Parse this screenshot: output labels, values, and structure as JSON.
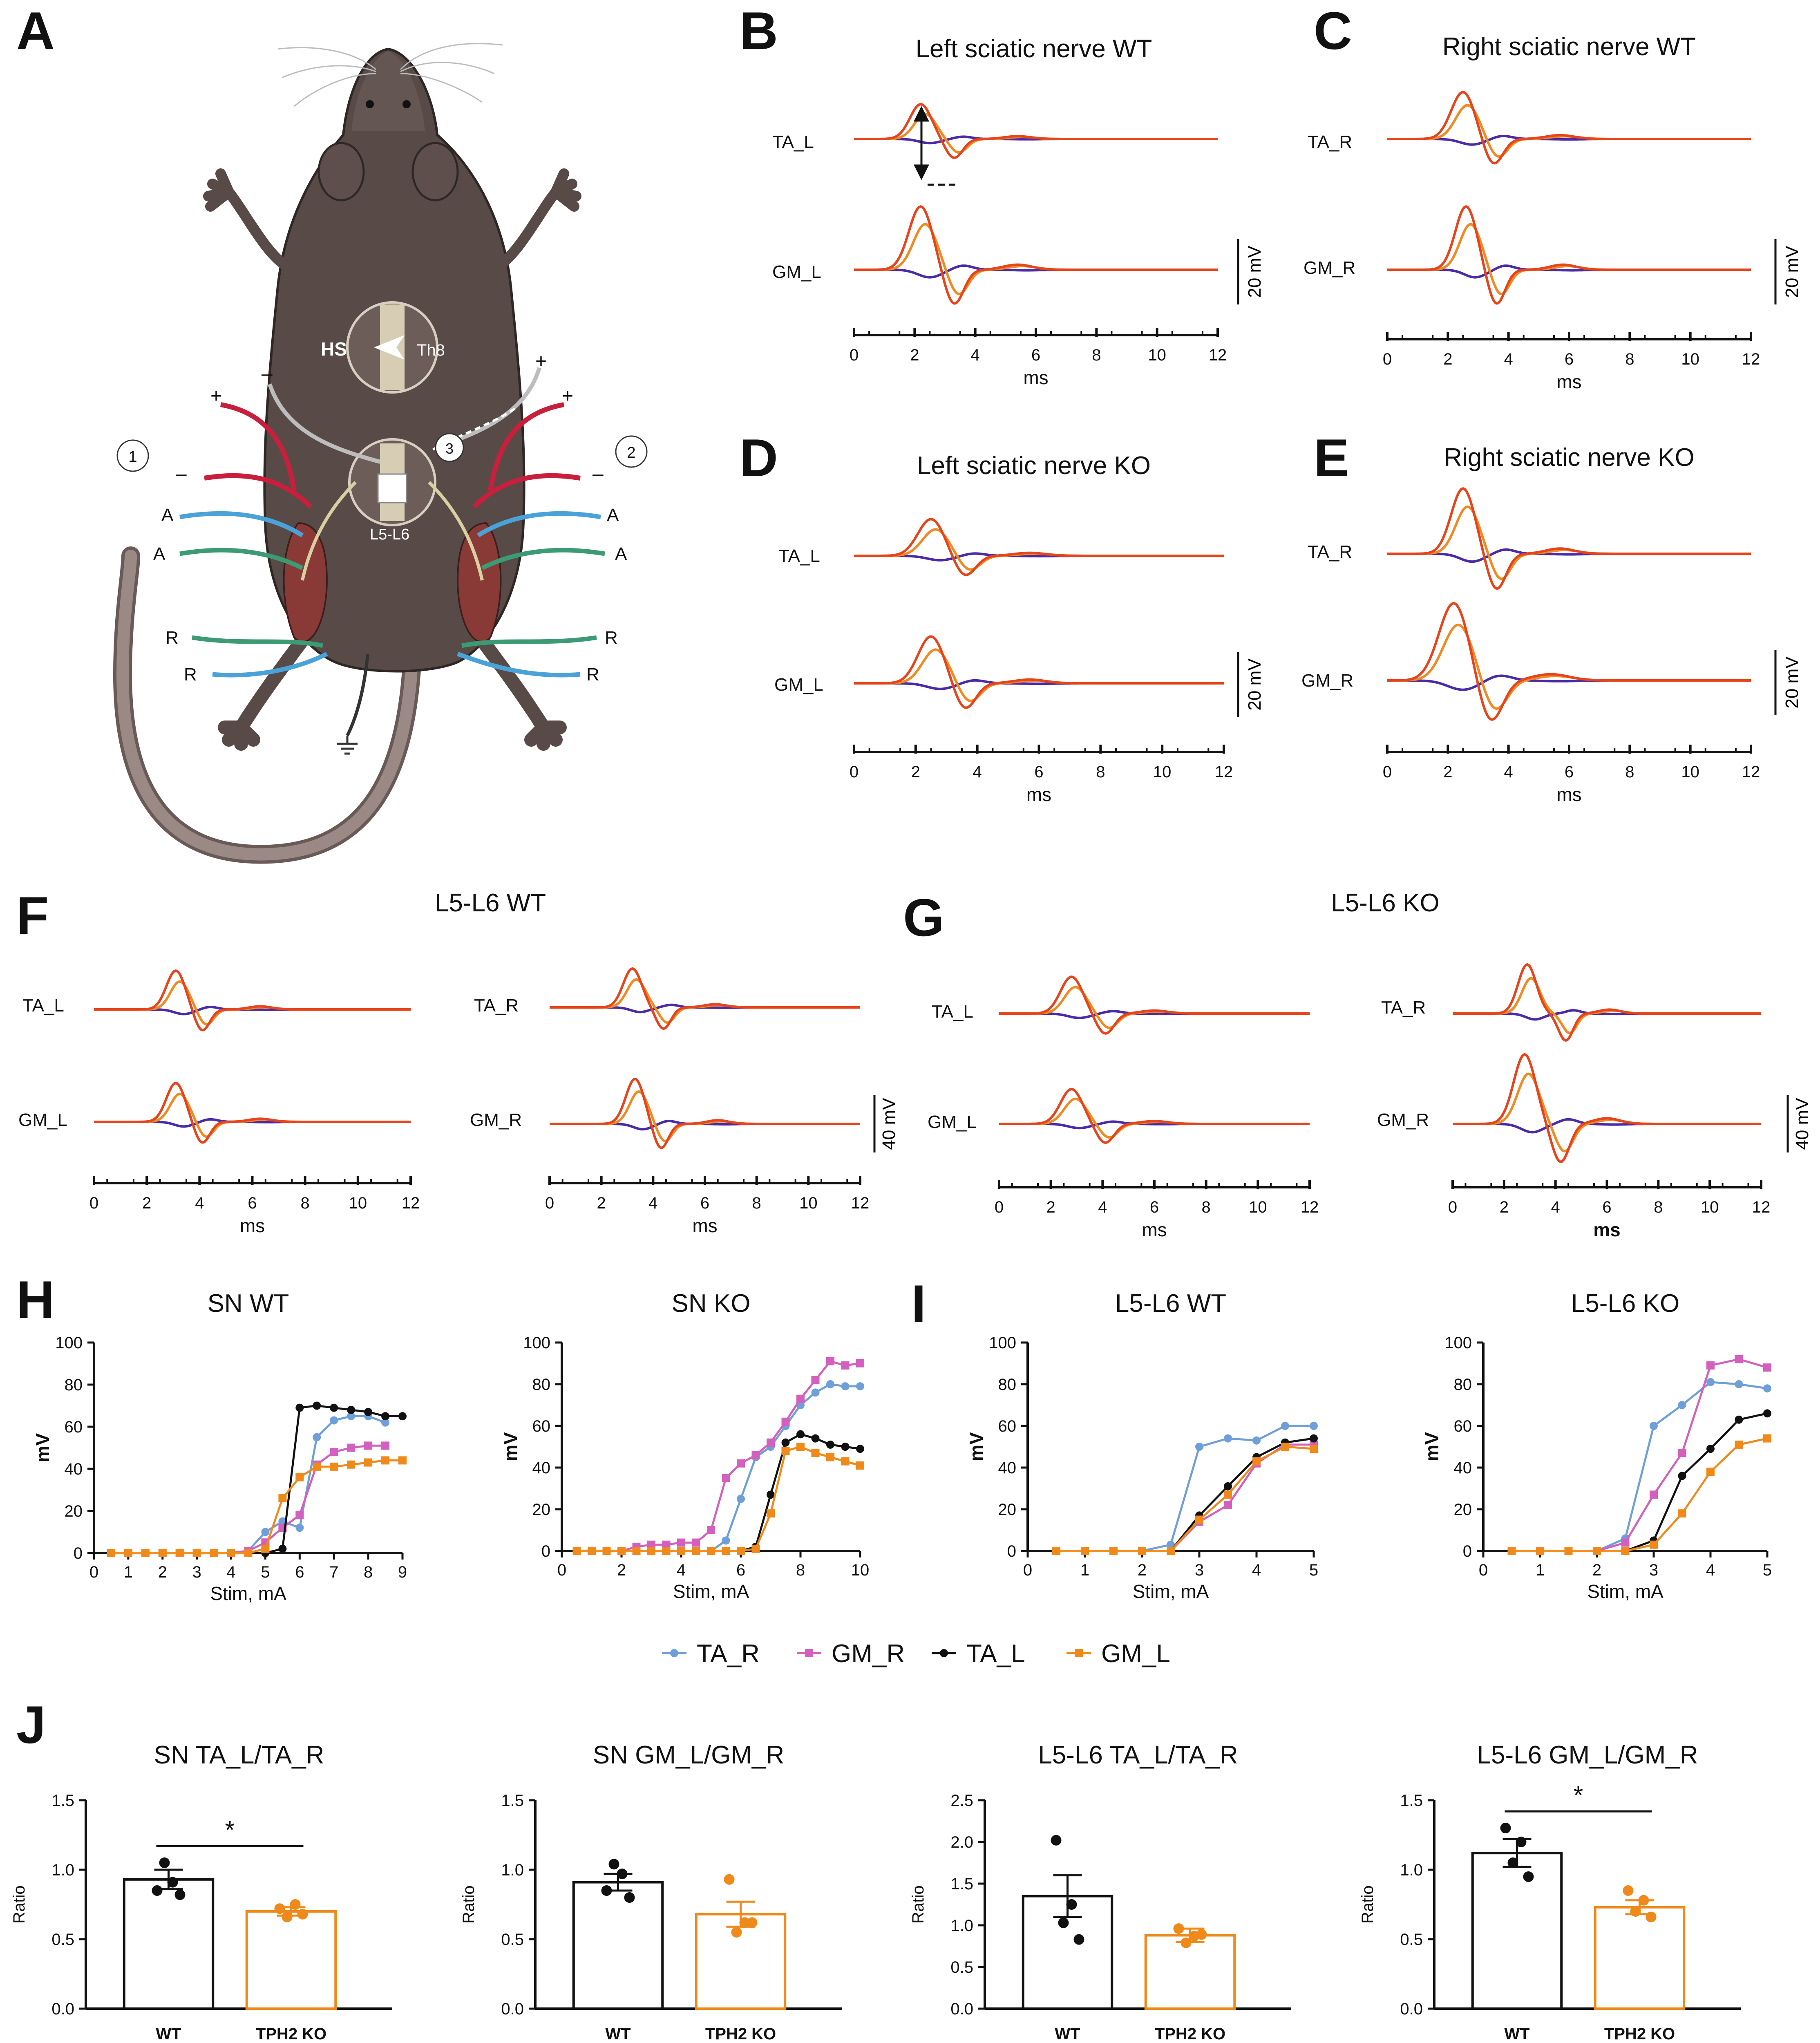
{
  "panels": {
    "A": {
      "letter": "A",
      "labels": {
        "hs": "HS",
        "th8": "Th8",
        "l5l6": "L5-L6",
        "c1": "1",
        "c2": "2",
        "c3": "3",
        "plus": "+",
        "minus": "–",
        "a": "A",
        "r": "R"
      }
    },
    "B": {
      "letter": "B",
      "title": "Left sciatic nerve WT",
      "top": "TA_L",
      "bottom": "GM_L",
      "scale": "20 mV",
      "xlabel": "ms"
    },
    "C": {
      "letter": "C",
      "title": "Right sciatic nerve WT",
      "top": "TA_R",
      "bottom": "GM_R",
      "scale": "20 mV",
      "xlabel": "ms"
    },
    "D": {
      "letter": "D",
      "title": "Left sciatic nerve KO",
      "top": "TA_L",
      "bottom": "GM_L",
      "scale": "20 mV",
      "xlabel": "ms"
    },
    "E": {
      "letter": "E",
      "title": "Right sciatic nerve KO",
      "top": "TA_R",
      "bottom": "GM_R",
      "scale": "20 mV",
      "xlabel": "ms"
    },
    "F": {
      "letter": "F",
      "title": "L5-L6 WT",
      "left_top": "TA_L",
      "left_bottom": "GM_L",
      "right_top": "TA_R",
      "right_bottom": "GM_R",
      "scale": "40 mV",
      "xlabel": "ms"
    },
    "G": {
      "letter": "G",
      "title": "L5-L6 KO",
      "left_top": "TA_L",
      "left_bottom": "GM_L",
      "right_top": "TA_R",
      "right_bottom": "GM_R",
      "scale": "40 mV",
      "xlabel": "ms"
    },
    "H": {
      "letter": "H"
    },
    "I": {
      "letter": "I"
    },
    "J": {
      "letter": "J"
    }
  },
  "trace_axis_ticks": [
    "0",
    "2",
    "4",
    "6",
    "8",
    "10",
    "12"
  ],
  "legend": [
    {
      "name": "TA_R",
      "color": "#6f9fd8",
      "marker": "circle"
    },
    {
      "name": "GM_R",
      "color": "#d35fbf",
      "marker": "square"
    },
    {
      "name": "TA_L",
      "color": "#111111",
      "marker": "circle"
    },
    {
      "name": "GM_L",
      "color": "#ef8a1a",
      "marker": "square"
    }
  ],
  "colors": {
    "trace_low": "#4b2aa8",
    "trace_mid": "#f08a22",
    "trace_high": "#e8441b",
    "ko_bar": "#ef8a1a",
    "wt_bar": "#111111"
  },
  "chart_data": [
    {
      "type": "line",
      "id": "H1",
      "title": "SN WT",
      "xlabel": "Stim, mA",
      "ylabel": "mV",
      "xlim": [
        0,
        9
      ],
      "ylim": [
        0,
        100
      ],
      "xticks": [
        "0",
        "1",
        "2",
        "3",
        "4",
        "5",
        "6",
        "7",
        "8",
        "9"
      ],
      "yticks": [
        "0",
        "20",
        "40",
        "60",
        "80",
        "100"
      ],
      "x": [
        0.5,
        1,
        1.5,
        2,
        2.5,
        3,
        3.5,
        4,
        4.5,
        5,
        5.5,
        6,
        6.5,
        7,
        7.5,
        8,
        8.5,
        9
      ],
      "series": [
        {
          "name": "TA_R",
          "values": [
            0,
            0,
            0,
            0,
            0,
            0,
            0,
            0,
            1,
            10,
            15,
            12,
            55,
            63,
            65,
            65,
            62,
            null
          ]
        },
        {
          "name": "GM_R",
          "values": [
            0,
            0,
            0,
            0,
            0,
            0,
            0,
            0,
            1,
            5,
            12,
            18,
            42,
            48,
            50,
            51,
            51,
            null
          ]
        },
        {
          "name": "TA_L",
          "values": [
            0,
            0,
            0,
            0,
            0,
            0,
            0,
            0,
            0,
            0,
            2,
            69,
            70,
            69,
            68,
            67,
            65,
            65
          ]
        },
        {
          "name": "GM_L",
          "values": [
            0,
            0,
            0,
            0,
            0,
            0,
            0,
            0,
            0,
            2,
            26,
            36,
            41,
            41,
            42,
            43,
            44,
            44
          ]
        }
      ]
    },
    {
      "type": "line",
      "id": "H2",
      "title": "SN KO",
      "xlabel": "Stim, mA",
      "ylabel": "mV",
      "xlim": [
        0,
        10
      ],
      "ylim": [
        0,
        100
      ],
      "xticks": [
        "0",
        "2",
        "4",
        "6",
        "8",
        "10"
      ],
      "yticks": [
        "0",
        "20",
        "40",
        "60",
        "80",
        "100"
      ],
      "x": [
        0.5,
        1,
        1.5,
        2,
        2.5,
        3,
        3.5,
        4,
        4.5,
        5,
        5.5,
        6,
        6.5,
        7,
        7.5,
        8,
        8.5,
        9,
        9.5,
        10
      ],
      "series": [
        {
          "name": "TA_R",
          "values": [
            0,
            0,
            0,
            0,
            0,
            0,
            0,
            0,
            0,
            0,
            5,
            25,
            45,
            50,
            60,
            70,
            76,
            80,
            79,
            79
          ]
        },
        {
          "name": "GM_R",
          "values": [
            0,
            0,
            0,
            0,
            2,
            3,
            3,
            4,
            4,
            10,
            35,
            42,
            46,
            52,
            62,
            73,
            82,
            91,
            89,
            90
          ]
        },
        {
          "name": "TA_L",
          "values": [
            0,
            0,
            0,
            0,
            0,
            0,
            0,
            0,
            0,
            0,
            0,
            0,
            2,
            27,
            52,
            56,
            54,
            51,
            50,
            49
          ]
        },
        {
          "name": "GM_L",
          "values": [
            0,
            0,
            0,
            0,
            0,
            0,
            0,
            0,
            0,
            0,
            0,
            0,
            1,
            18,
            48,
            50,
            47,
            45,
            43,
            41
          ]
        }
      ]
    },
    {
      "type": "line",
      "id": "I1",
      "title": "L5-L6 WT",
      "xlabel": "Stim, mA",
      "ylabel": "mV",
      "xlim": [
        0,
        5
      ],
      "ylim": [
        0,
        100
      ],
      "xticks": [
        "0",
        "1",
        "2",
        "3",
        "4",
        "5"
      ],
      "yticks": [
        "0",
        "20",
        "40",
        "60",
        "80",
        "100"
      ],
      "x": [
        0.5,
        1,
        1.5,
        2,
        2.5,
        3,
        3.5,
        4,
        4.5,
        5
      ],
      "series": [
        {
          "name": "TA_R",
          "values": [
            0,
            0,
            0,
            0,
            3,
            50,
            54,
            53,
            60,
            60
          ]
        },
        {
          "name": "GM_R",
          "values": [
            0,
            0,
            0,
            0,
            0,
            14,
            22,
            42,
            51,
            51
          ]
        },
        {
          "name": "TA_L",
          "values": [
            0,
            0,
            0,
            0,
            0,
            17,
            31,
            45,
            52,
            54
          ]
        },
        {
          "name": "GM_L",
          "values": [
            0,
            0,
            0,
            0,
            0,
            15,
            27,
            43,
            50,
            49
          ]
        }
      ]
    },
    {
      "type": "line",
      "id": "I2",
      "title": "L5-L6 KO",
      "xlabel": "Stim, mA",
      "ylabel": "mV",
      "xlim": [
        0,
        5
      ],
      "ylim": [
        0,
        100
      ],
      "xticks": [
        "0",
        "1",
        "2",
        "3",
        "4",
        "5"
      ],
      "yticks": [
        "0",
        "20",
        "40",
        "60",
        "80",
        "100"
      ],
      "x": [
        0.5,
        1,
        1.5,
        2,
        2.5,
        3,
        3.5,
        4,
        4.5,
        5
      ],
      "series": [
        {
          "name": "TA_R",
          "values": [
            0,
            0,
            0,
            0,
            6,
            60,
            70,
            81,
            80,
            78
          ]
        },
        {
          "name": "GM_R",
          "values": [
            0,
            0,
            0,
            0,
            4,
            27,
            47,
            89,
            92,
            88
          ]
        },
        {
          "name": "TA_L",
          "values": [
            0,
            0,
            0,
            0,
            0,
            5,
            36,
            49,
            63,
            66
          ]
        },
        {
          "name": "GM_L",
          "values": [
            0,
            0,
            0,
            0,
            0,
            3,
            18,
            38,
            51,
            54
          ]
        }
      ]
    },
    {
      "type": "bar",
      "id": "J1",
      "title": "SN TA_L/TA_R",
      "ylabel": "Ratio",
      "categories": [
        "WT",
        "TPH2 KO"
      ],
      "values": [
        0.93,
        0.7
      ],
      "sem": [
        0.07,
        0.03
      ],
      "points": [
        [
          0.85,
          0.91,
          1.05,
          0.82
        ],
        [
          0.72,
          0.75,
          0.66,
          0.68
        ]
      ],
      "ylim": [
        0,
        1.5
      ],
      "yticks": [
        "0.0",
        "0.5",
        "1.0",
        "1.5"
      ],
      "significance": "*"
    },
    {
      "type": "bar",
      "id": "J2",
      "title": "SN GM_L/GM_R",
      "ylabel": "Ratio",
      "categories": [
        "WT",
        "TPH2 KO"
      ],
      "values": [
        0.91,
        0.68
      ],
      "sem": [
        0.06,
        0.09
      ],
      "points": [
        [
          0.85,
          0.97,
          1.04,
          0.8
        ],
        [
          0.93,
          0.62,
          0.55,
          0.62
        ]
      ],
      "ylim": [
        0,
        1.5
      ],
      "yticks": [
        "0.0",
        "0.5",
        "1.0",
        "1.5"
      ],
      "significance": ""
    },
    {
      "type": "bar",
      "id": "J3",
      "title": "L5-L6 TA_L/TA_R",
      "ylabel": "Ratio",
      "categories": [
        "WT",
        "TPH2 KO"
      ],
      "values": [
        1.35,
        0.88
      ],
      "sem": [
        0.25,
        0.08
      ],
      "points": [
        [
          2.02,
          1.25,
          1.03,
          0.83
        ],
        [
          0.96,
          0.87,
          0.79,
          0.89
        ]
      ],
      "ylim": [
        0,
        2.5
      ],
      "yticks": [
        "0.0",
        "0.5",
        "1.0",
        "1.5",
        "2.0",
        "2.5"
      ],
      "significance": ""
    },
    {
      "type": "bar",
      "id": "J4",
      "title": "L5-L6 GM_L/GM_R",
      "ylabel": "Ratio",
      "categories": [
        "WT",
        "TPH2 KO"
      ],
      "values": [
        1.12,
        0.73
      ],
      "sem": [
        0.1,
        0.05
      ],
      "points": [
        [
          1.3,
          1.2,
          1.05,
          0.95
        ],
        [
          0.85,
          0.78,
          0.7,
          0.66
        ]
      ],
      "ylim": [
        0,
        1.5
      ],
      "yticks": [
        "0.0",
        "0.5",
        "1.0",
        "1.5"
      ],
      "significance": "*"
    }
  ]
}
